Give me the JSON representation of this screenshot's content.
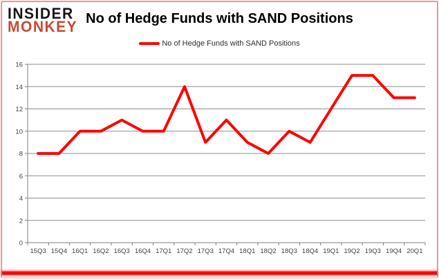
{
  "logo": {
    "line1": "INSIDER",
    "line2": "MONKEY"
  },
  "header": {
    "title": "No of Hedge Funds with SAND Positions"
  },
  "legend": {
    "label": "No of Hedge Funds with SAND Positions"
  },
  "colors": {
    "line": "#FF0000",
    "grid": "#8C8C8C",
    "axis": "#808080",
    "tick_text": "#3F3F3F",
    "title_text": "#000000",
    "logo_black": "#151515",
    "logo_red": "#C64A32",
    "bottom_bar": "#FF0000",
    "frame_border": "#8F8F8F"
  },
  "chart_data": {
    "type": "line",
    "title": "No of Hedge Funds with SAND Positions",
    "categories": [
      "15Q3",
      "15Q4",
      "16Q1",
      "16Q2",
      "16Q3",
      "16Q4",
      "17Q1",
      "17Q2",
      "17Q3",
      "17Q4",
      "18Q1",
      "18Q2",
      "18Q3",
      "18Q4",
      "19Q1",
      "19Q2",
      "19Q3",
      "19Q4",
      "20Q1"
    ],
    "values": [
      8,
      8,
      10,
      10,
      11,
      10,
      10,
      14,
      9,
      11,
      9,
      8,
      10,
      9,
      12,
      15,
      15,
      13,
      13
    ],
    "series": [
      {
        "name": "No of Hedge Funds with SAND Positions",
        "values": [
          8,
          8,
          10,
          10,
          11,
          10,
          10,
          14,
          9,
          11,
          9,
          8,
          10,
          9,
          12,
          15,
          15,
          13,
          13
        ]
      }
    ],
    "xlabel": "",
    "ylabel": "",
    "ylim": [
      0,
      16
    ],
    "yticks": [
      0,
      2,
      4,
      6,
      8,
      10,
      12,
      14,
      16
    ],
    "grid": true,
    "legend_position": "top-center",
    "line_color": "#FF0000",
    "line_width": 4
  }
}
